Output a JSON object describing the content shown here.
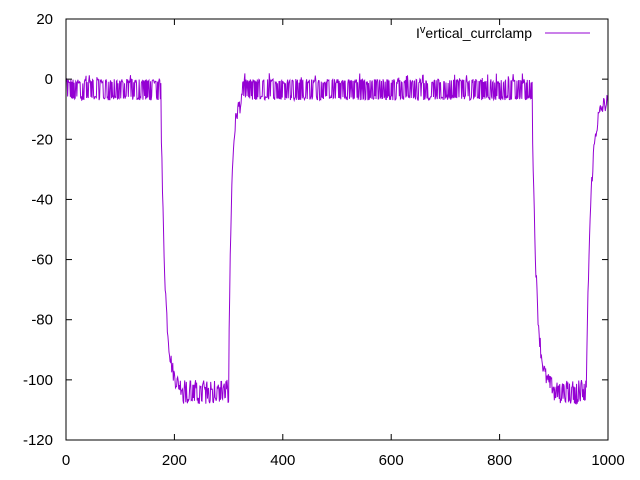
{
  "chart_data": {
    "type": "line",
    "title": "",
    "xlabel": "",
    "ylabel": "",
    "xlim": [
      0,
      1000
    ],
    "ylim": [
      -120,
      20
    ],
    "xticks": [
      0,
      200,
      400,
      600,
      800,
      1000
    ],
    "yticks": [
      20,
      0,
      -20,
      -40,
      -60,
      -80,
      -100,
      -120
    ],
    "grid": false,
    "legend_position": "top-right",
    "series": [
      {
        "name": "I^vertical_currclamp",
        "legend_base": "I",
        "legend_sup": "v",
        "legend_rest": "ertical_currclamp",
        "color": "#9400d3",
        "segments": [
          {
            "x0": 0,
            "x1": 175,
            "level": "high"
          },
          {
            "x0": 175,
            "x1": 215,
            "level": "fall"
          },
          {
            "x0": 215,
            "x1": 300,
            "level": "low"
          },
          {
            "x0": 300,
            "x1": 325,
            "level": "rise"
          },
          {
            "x0": 325,
            "x1": 860,
            "level": "high"
          },
          {
            "x0": 860,
            "x1": 900,
            "level": "fall"
          },
          {
            "x0": 900,
            "x1": 960,
            "level": "low"
          },
          {
            "x0": 960,
            "x1": 1000,
            "level": "rise"
          }
        ],
        "high_band": [
          -7,
          0
        ],
        "high_spike_max": 2,
        "low_band": [
          -108,
          -100
        ],
        "low_level": -103
      }
    ]
  }
}
